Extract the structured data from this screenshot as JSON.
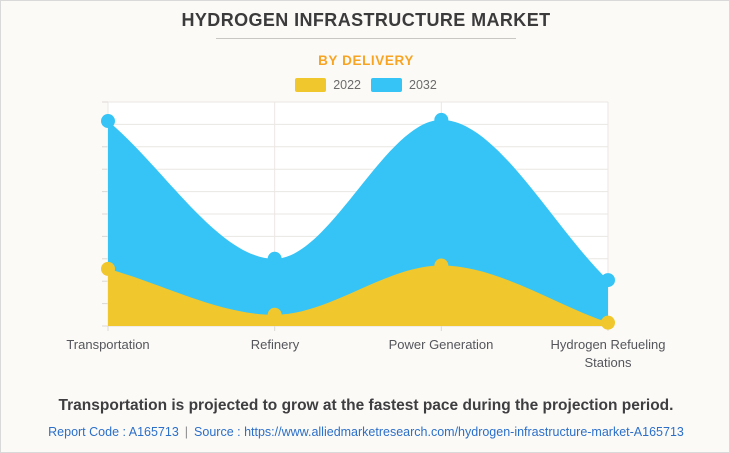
{
  "header": {
    "title": "HYDROGEN INFRASTRUCTURE MARKET",
    "subtitle": "BY DELIVERY"
  },
  "legend": [
    {
      "label": "2022",
      "color": "#F1C72E"
    },
    {
      "label": "2032",
      "color": "#35C4F5"
    }
  ],
  "chart_data": {
    "type": "area",
    "smooth": true,
    "categories": [
      "Transportation",
      "Refinery",
      "Power Generation",
      "Hydrogen Refueling Stations"
    ],
    "series": [
      {
        "name": "2032",
        "color": "#35C4F5",
        "values": [
          91.5,
          30,
          92,
          20.5
        ]
      },
      {
        "name": "2022",
        "color": "#F1C72E",
        "values": [
          25.5,
          5,
          27,
          1.5
        ]
      }
    ],
    "title": "HYDROGEN INFRASTRUCTURE MARKET",
    "subtitle": "BY DELIVERY",
    "xlabel": "",
    "ylabel": "",
    "ylim": [
      0,
      100
    ],
    "y_tick_labels_visible": false,
    "grid": true,
    "horizontal_gridlines": 11,
    "legend_position": "top",
    "plot_background": "#FFFFFF",
    "gridline_color": "#EAE7E3",
    "marker_radius": 7
  },
  "footer": {
    "note": "Transportation is projected to grow at the fastest pace during the projection period.",
    "report_code": "Report Code : A165713",
    "separator": "|",
    "source": "Source : https://www.alliedmarketresearch.com/hydrogen-infrastructure-market-A165713"
  }
}
